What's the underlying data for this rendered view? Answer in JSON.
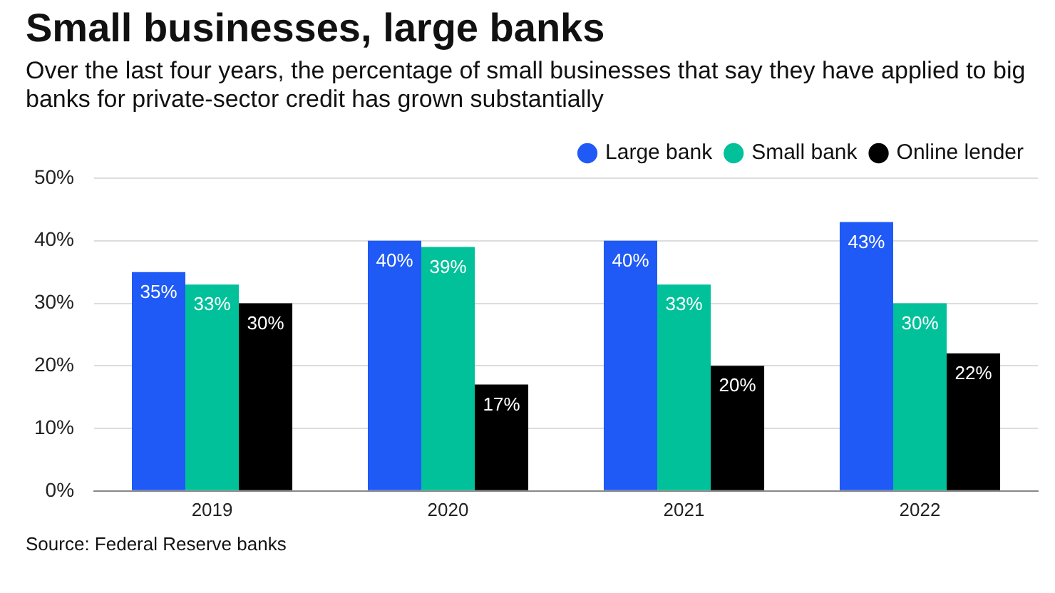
{
  "chart_data": {
    "type": "bar",
    "title": "Small businesses, large banks",
    "subtitle": "Over the last four years, the percentage of small businesses that say they have applied to big banks for private-sector credit has grown substantially",
    "categories": [
      "2019",
      "2020",
      "2021",
      "2022"
    ],
    "series": [
      {
        "name": "Large bank",
        "color": "#1f5af6",
        "values": [
          35,
          40,
          40,
          43
        ],
        "value_labels": [
          "35%",
          "40%",
          "40%",
          "43%"
        ]
      },
      {
        "name": "Small bank",
        "color": "#00c19a",
        "values": [
          33,
          39,
          33,
          30
        ],
        "value_labels": [
          "33%",
          "39%",
          "33%",
          "30%"
        ]
      },
      {
        "name": "Online lender",
        "color": "#000000",
        "values": [
          30,
          17,
          20,
          22
        ],
        "value_labels": [
          "30%",
          "17%",
          "20%",
          "22%"
        ]
      }
    ],
    "ylim": [
      0,
      50
    ],
    "yticks": [
      {
        "value": 0,
        "label": "0%"
      },
      {
        "value": 10,
        "label": "10%"
      },
      {
        "value": 20,
        "label": "20%"
      },
      {
        "value": 30,
        "label": "30%"
      },
      {
        "value": 40,
        "label": "40%"
      },
      {
        "value": 50,
        "label": "50%"
      }
    ],
    "grid": "y",
    "legend": "top right",
    "annotations": [
      "Source: Federal Reserve banks"
    ]
  }
}
